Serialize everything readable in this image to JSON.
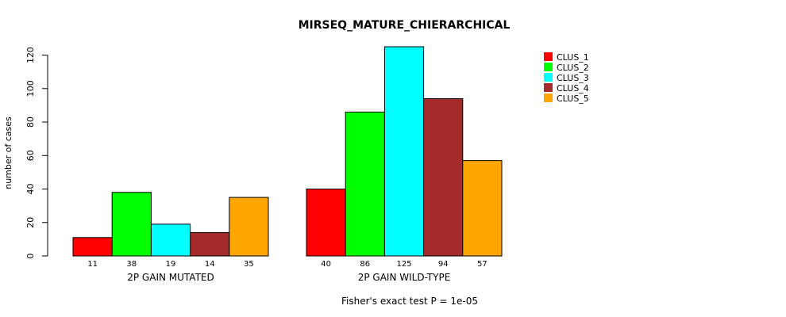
{
  "chart_data": {
    "type": "bar",
    "title": "MIRSEQ_MATURE_CHIERARCHICAL",
    "xlabel": "",
    "ylabel": "number of cases",
    "ylim": [
      0,
      125
    ],
    "yticks": [
      0,
      20,
      40,
      60,
      80,
      100,
      120
    ],
    "yticks_text": [
      "0",
      "20",
      "40",
      "60",
      "80",
      "100",
      "120"
    ],
    "groups": [
      "2P GAIN MUTATED",
      "2P GAIN WILD-TYPE"
    ],
    "series": [
      {
        "name": "CLUS_1",
        "color": "#ff0000",
        "values": [
          11,
          40
        ],
        "labels": [
          "11",
          "40"
        ]
      },
      {
        "name": "CLUS_2",
        "color": "#00ff00",
        "values": [
          38,
          86
        ],
        "labels": [
          "38",
          "86"
        ]
      },
      {
        "name": "CLUS_3",
        "color": "#00ffff",
        "values": [
          19,
          125
        ],
        "labels": [
          "19",
          "125"
        ]
      },
      {
        "name": "CLUS_4",
        "color": "#a52a2a",
        "values": [
          14,
          94
        ],
        "labels": [
          "14",
          "94"
        ]
      },
      {
        "name": "CLUS_5",
        "color": "#ffa500",
        "values": [
          35,
          57
        ],
        "labels": [
          "35",
          "57"
        ]
      }
    ],
    "legend_position": "top-right",
    "annotation": "Fisher's exact test P = 1e-05"
  }
}
